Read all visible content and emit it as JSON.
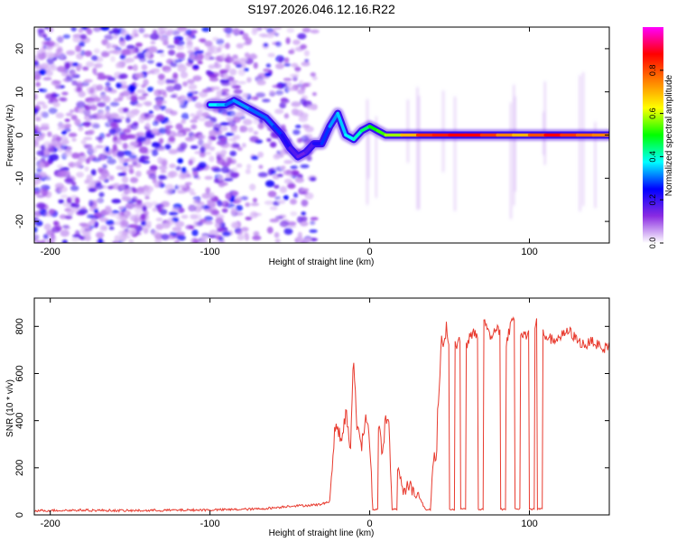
{
  "title": "S197.2026.046.12.16.R22",
  "chart_data": [
    {
      "type": "heatmap",
      "xlabel": "Height of straight line (km)",
      "ylabel": "Frequency (Hz)",
      "xlim": [
        -210,
        150
      ],
      "ylim": [
        -25,
        25
      ],
      "xticks": [
        -200,
        -100,
        0,
        100
      ],
      "yticks": [
        -20,
        -10,
        0,
        10,
        20
      ],
      "colorbar": {
        "label": "Normalized spectral amplitude",
        "range": [
          0,
          1
        ],
        "ticks": [
          0,
          0.2,
          0.4,
          0.6,
          0.8
        ],
        "colors": [
          "#ffffff",
          "#8a2be2",
          "#0000ff",
          "#00ffff",
          "#00ff00",
          "#ffff00",
          "#ff8000",
          "#ff0000",
          "#ff00ff"
        ]
      },
      "ridge": {
        "x": [
          -100,
          -95,
          -90,
          -85,
          -80,
          -75,
          -70,
          -65,
          -60,
          -55,
          -50,
          -45,
          -40,
          -35,
          -30,
          -25,
          -20,
          -15,
          -10,
          -5,
          0,
          5,
          10,
          20,
          30,
          40,
          50,
          60,
          70,
          80,
          90,
          100,
          110,
          120,
          130,
          140,
          150
        ],
        "y": [
          7,
          7,
          7,
          8,
          7,
          6,
          5,
          4,
          2,
          0,
          -3,
          -5,
          -4,
          -2,
          -2,
          2,
          5,
          0,
          -1,
          1,
          2,
          1,
          0,
          0,
          0,
          0,
          0,
          0,
          0,
          0,
          0,
          0,
          0,
          0,
          0,
          0,
          0
        ],
        "amplitude": [
          0.35,
          0.4,
          0.3,
          0.3,
          0.35,
          0.3,
          0.3,
          0.3,
          0.3,
          0.25,
          0.2,
          0.15,
          0.15,
          0.2,
          0.25,
          0.3,
          0.35,
          0.35,
          0.4,
          0.4,
          0.5,
          0.5,
          0.55,
          0.6,
          0.8,
          0.85,
          0.85,
          0.9,
          0.85,
          0.8,
          0.7,
          0.7,
          0.9,
          0.85,
          0.8,
          0.75,
          0.75
        ]
      }
    },
    {
      "type": "line",
      "xlabel": "Height of straight line (km)",
      "ylabel": "SNR (10 * v/v)",
      "xlim": [
        -210,
        150
      ],
      "ylim": [
        0,
        920
      ],
      "xticks": [
        -200,
        -100,
        0,
        100
      ],
      "yticks": [
        0,
        200,
        400,
        600,
        800
      ],
      "color": "#e83a2e",
      "series": [
        {
          "name": "SNR",
          "x": [
            -210,
            -180,
            -150,
            -120,
            -90,
            -70,
            -60,
            -50,
            -40,
            -30,
            -25,
            -22,
            -20,
            -18,
            -15,
            -12,
            -10,
            -8,
            -5,
            -2,
            0,
            2,
            5,
            8,
            10,
            12,
            14,
            16,
            18,
            20,
            22,
            25,
            28,
            30,
            35,
            38,
            40,
            42,
            43,
            44,
            45,
            46,
            48,
            50,
            52,
            55,
            58,
            60,
            65,
            70,
            72,
            75,
            78,
            80,
            85,
            90,
            95,
            100,
            105,
            110,
            115,
            120,
            125,
            130,
            135,
            140,
            145,
            150
          ],
          "y": [
            18,
            20,
            18,
            20,
            22,
            25,
            30,
            38,
            40,
            45,
            60,
            350,
            380,
            300,
            430,
            280,
            650,
            380,
            300,
            420,
            300,
            20,
            420,
            250,
            400,
            380,
            20,
            220,
            200,
            120,
            110,
            120,
            100,
            90,
            20,
            50,
            240,
            260,
            480,
            590,
            770,
            720,
            750,
            740,
            730,
            720,
            760,
            700,
            780,
            740,
            830,
            760,
            780,
            800,
            720,
            850,
            760,
            770,
            820,
            760,
            740,
            760,
            780,
            740,
            720,
            740,
            700,
            720
          ]
        }
      ],
      "dropouts": [
        {
          "start": 2,
          "end": 5,
          "level": 20
        },
        {
          "start": 14,
          "end": 17,
          "level": 20
        },
        {
          "start": 35,
          "end": 38,
          "level": 20
        },
        {
          "start": 50,
          "end": 53,
          "level": 20
        },
        {
          "start": 57,
          "end": 60,
          "level": 20
        },
        {
          "start": 68,
          "end": 71,
          "level": 20
        },
        {
          "start": 82,
          "end": 85,
          "level": 20
        },
        {
          "start": 91,
          "end": 94,
          "level": 20
        },
        {
          "start": 100,
          "end": 103,
          "level": 20
        },
        {
          "start": 105,
          "end": 108,
          "level": 20
        }
      ]
    }
  ]
}
